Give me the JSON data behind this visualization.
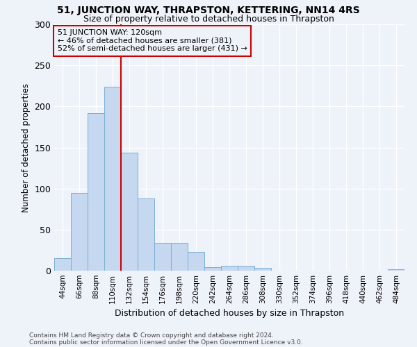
{
  "title": "51, JUNCTION WAY, THRAPSTON, KETTERING, NN14 4RS",
  "subtitle": "Size of property relative to detached houses in Thrapston",
  "xlabel": "Distribution of detached houses by size in Thrapston",
  "ylabel": "Number of detached properties",
  "categories": [
    "44sqm",
    "66sqm",
    "88sqm",
    "110sqm",
    "132sqm",
    "154sqm",
    "176sqm",
    "198sqm",
    "220sqm",
    "242sqm",
    "264sqm",
    "286sqm",
    "308sqm",
    "330sqm",
    "352sqm",
    "374sqm",
    "396sqm",
    "418sqm",
    "440sqm",
    "462sqm",
    "484sqm"
  ],
  "values": [
    15,
    95,
    192,
    224,
    144,
    88,
    34,
    34,
    23,
    4,
    6,
    6,
    3,
    0,
    0,
    0,
    0,
    0,
    0,
    0,
    2
  ],
  "bar_color": "#c5d8f0",
  "bar_edgecolor": "#7bafd4",
  "background_color": "#eef2f9",
  "grid_color": "#ffffff",
  "vline_color": "#cc0000",
  "annotation_text": "51 JUNCTION WAY: 120sqm\n← 46% of detached houses are smaller (381)\n52% of semi-detached houses are larger (431) →",
  "annotation_box_edgecolor": "#cc0000",
  "ylim": [
    0,
    300
  ],
  "yticks": [
    0,
    50,
    100,
    150,
    200,
    250,
    300
  ],
  "footer1": "Contains HM Land Registry data © Crown copyright and database right 2024.",
  "footer2": "Contains public sector information licensed under the Open Government Licence v3.0."
}
